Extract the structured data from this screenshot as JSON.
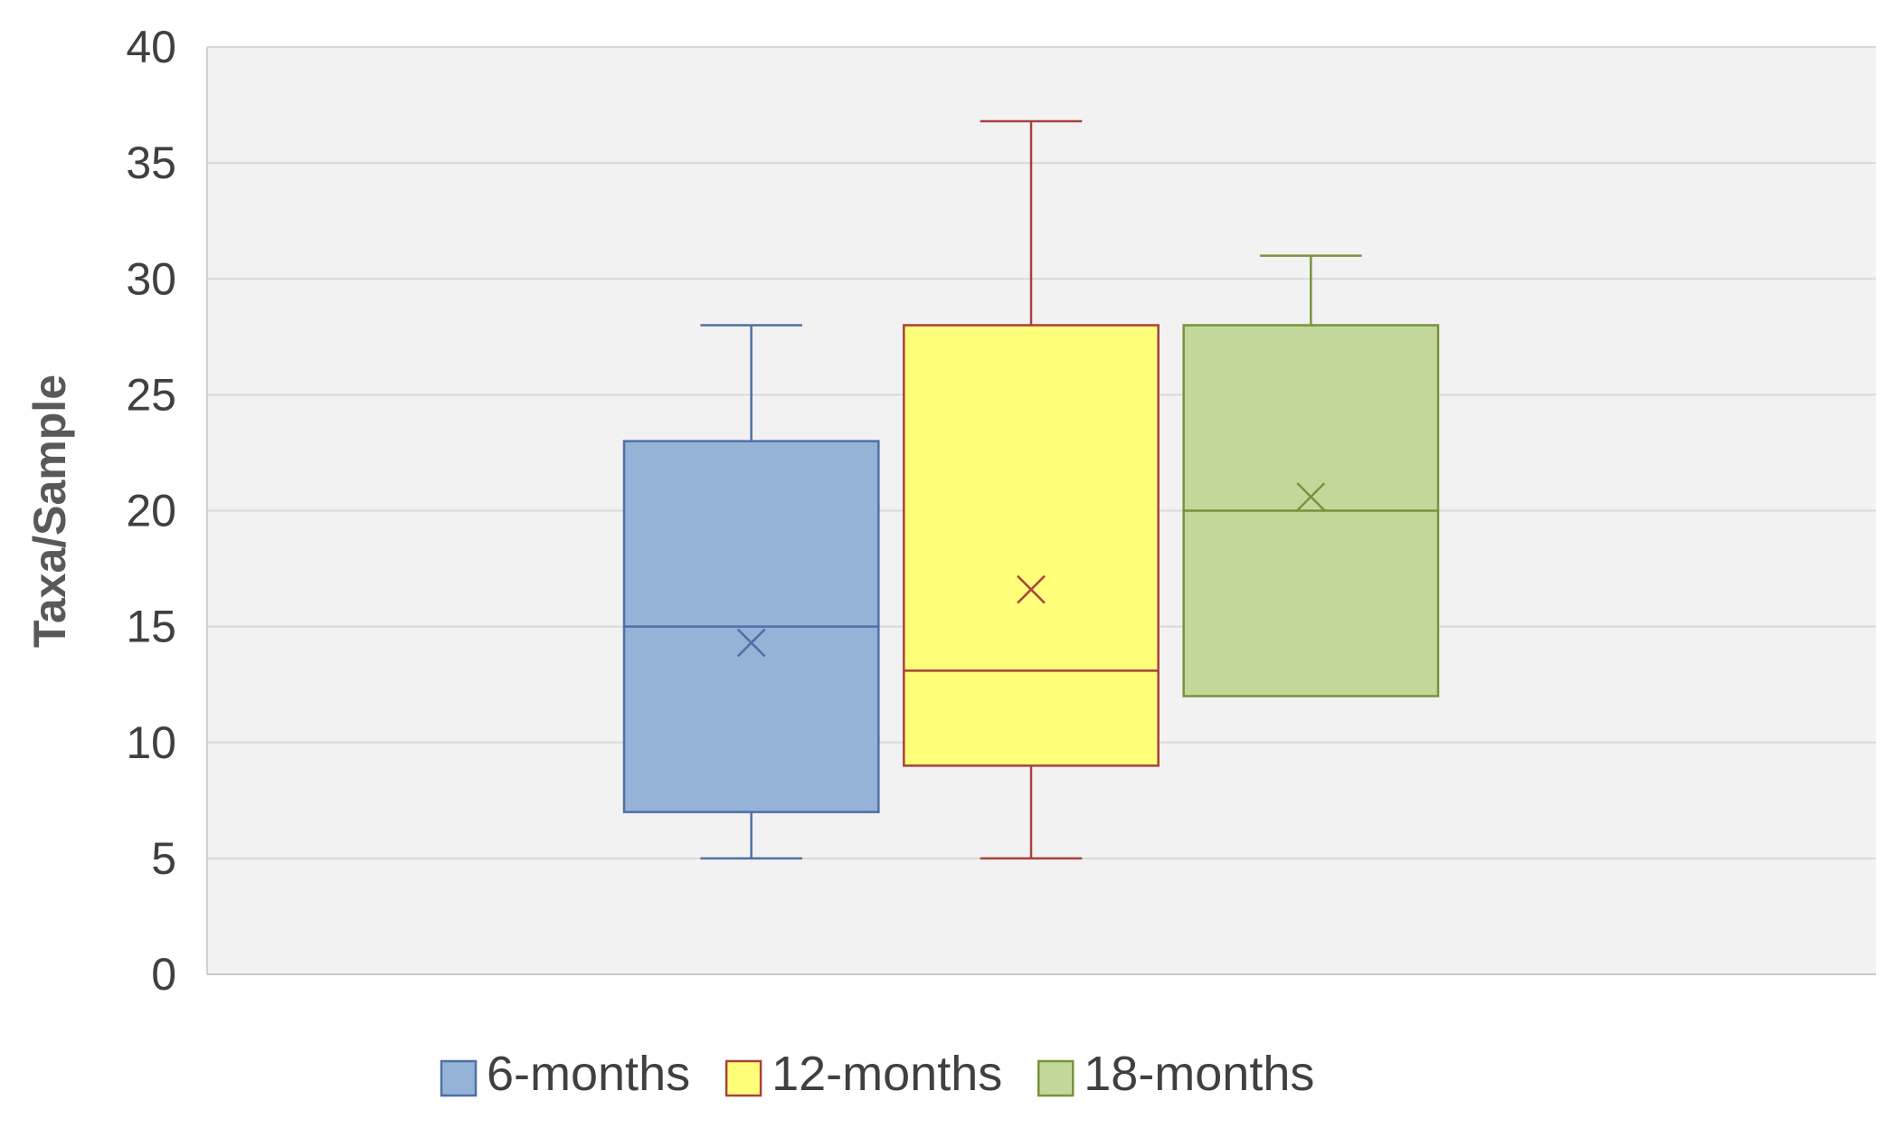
{
  "chart_data": {
    "type": "box",
    "title": "",
    "xlabel": "",
    "ylabel": "Taxa/Sample",
    "ylim": [
      0,
      40
    ],
    "yticks": [
      "0",
      "5",
      "10",
      "15",
      "20",
      "25",
      "30",
      "35",
      "40"
    ],
    "grid": true,
    "legend_position": "bottom",
    "series": [
      {
        "name": "6-months",
        "min": 5,
        "q1": 7,
        "median": 15,
        "q3": 23,
        "max": 28,
        "mean": 14.3,
        "fill": "#95b3d7",
        "stroke": "#4f6fa6"
      },
      {
        "name": "12-months",
        "min": 5,
        "q1": 9,
        "median": 13.1,
        "q3": 28,
        "max": 36.8,
        "mean": 16.6,
        "fill": "#ffff7a",
        "stroke": "#a8413e"
      },
      {
        "name": "18-months",
        "min": 12,
        "q1": 12,
        "median": 20,
        "q3": 28,
        "max": 31,
        "mean": 20.6,
        "fill": "#c4d79b",
        "stroke": "#77933c"
      }
    ]
  }
}
